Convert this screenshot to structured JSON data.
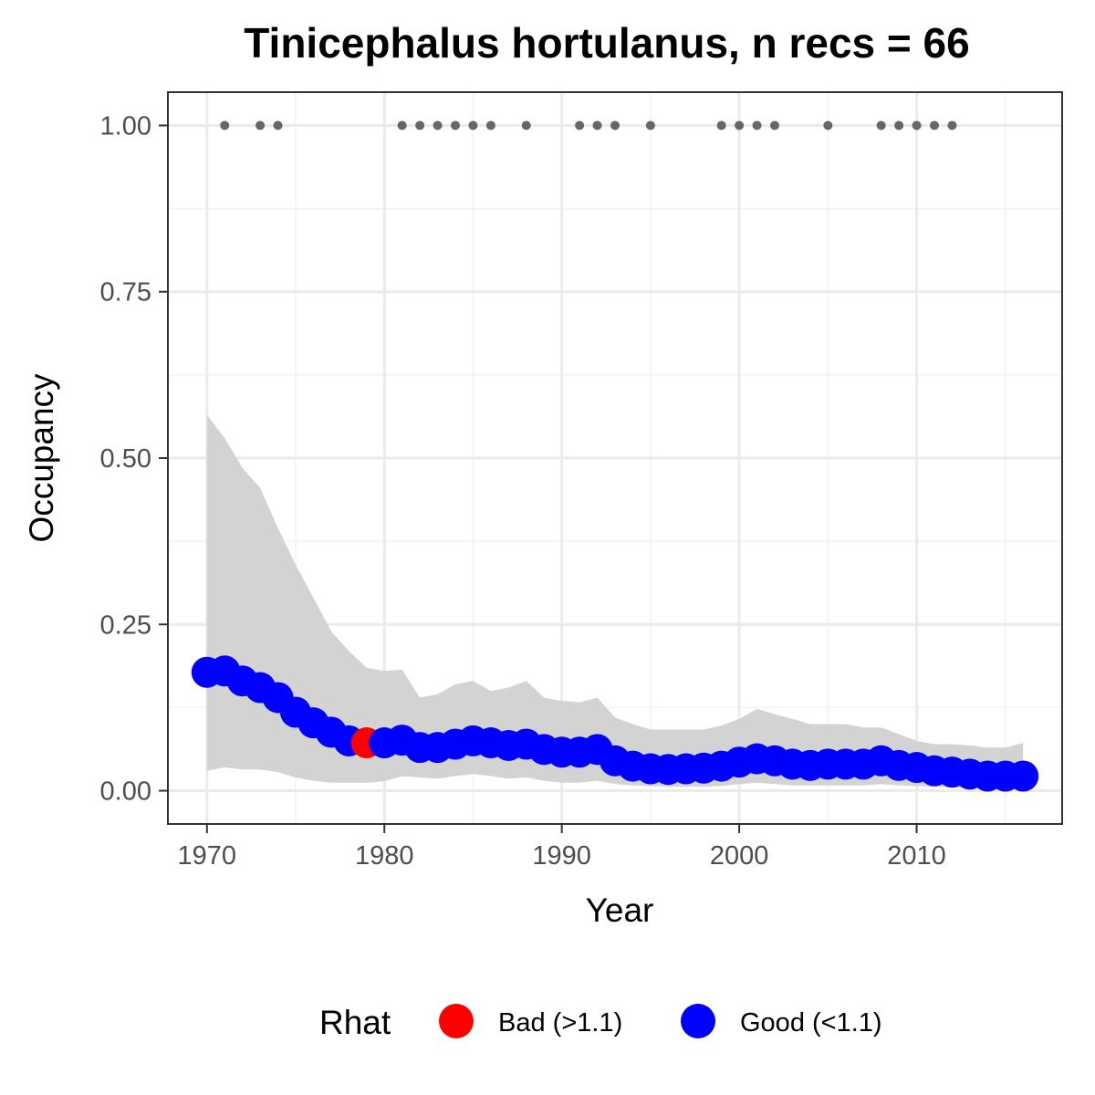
{
  "chart_data": {
    "type": "line",
    "title": "Tinicephalus hortulanus, n recs = 66",
    "xlabel": "Year",
    "ylabel": "Occupancy",
    "xlim": [
      1967.8,
      2018.2
    ],
    "ylim": [
      -0.05,
      1.05
    ],
    "x_ticks": [
      "1970",
      "1980",
      "1990",
      "2000",
      "2010"
    ],
    "y_ticks": [
      "0.00",
      "0.25",
      "0.50",
      "0.75",
      "1.00"
    ],
    "grid": true,
    "legend": {
      "title": "Rhat",
      "placement": "bottom",
      "entries": [
        {
          "label": "Bad (>1.1)",
          "color": "#ff0000"
        },
        {
          "label": "Good (<1.1)",
          "color": "#0000ff"
        }
      ]
    },
    "colors": {
      "bad": "#ff0000",
      "good": "#0000ff",
      "records": "#666666",
      "ribbon": "#d3d3d3"
    },
    "series": [
      {
        "x": [
          1970,
          1971,
          1972,
          1973,
          1974,
          1975,
          1976,
          1977,
          1978,
          1979,
          1980,
          1981,
          1982,
          1983,
          1984,
          1985,
          1986,
          1987,
          1988,
          1989,
          1990,
          1991,
          1992,
          1993,
          1994,
          1995,
          1996,
          1997,
          1998,
          1999,
          2000,
          2001,
          2002,
          2003,
          2004,
          2005,
          2006,
          2007,
          2008,
          2009,
          2010,
          2011,
          2012,
          2013,
          2014,
          2015,
          2016
        ],
        "mean": [
          0.178,
          0.18,
          0.165,
          0.155,
          0.14,
          0.118,
          0.102,
          0.088,
          0.075,
          0.072,
          0.072,
          0.076,
          0.065,
          0.065,
          0.07,
          0.075,
          0.072,
          0.068,
          0.07,
          0.062,
          0.058,
          0.058,
          0.062,
          0.045,
          0.037,
          0.033,
          0.032,
          0.033,
          0.034,
          0.037,
          0.043,
          0.048,
          0.045,
          0.04,
          0.038,
          0.04,
          0.04,
          0.04,
          0.045,
          0.038,
          0.035,
          0.03,
          0.028,
          0.025,
          0.022,
          0.022,
          0.022
        ],
        "lower": [
          0.03,
          0.035,
          0.032,
          0.032,
          0.028,
          0.02,
          0.015,
          0.012,
          0.012,
          0.012,
          0.014,
          0.022,
          0.02,
          0.018,
          0.022,
          0.025,
          0.022,
          0.018,
          0.02,
          0.015,
          0.012,
          0.012,
          0.015,
          0.01,
          0.008,
          0.007,
          0.006,
          0.006,
          0.006,
          0.007,
          0.01,
          0.012,
          0.01,
          0.008,
          0.008,
          0.008,
          0.008,
          0.008,
          0.01,
          0.008,
          0.007,
          0.006,
          0.005,
          0.004,
          0.004,
          0.004,
          0.004
        ],
        "upper": [
          0.565,
          0.53,
          0.485,
          0.455,
          0.395,
          0.34,
          0.29,
          0.24,
          0.21,
          0.185,
          0.18,
          0.182,
          0.14,
          0.145,
          0.16,
          0.165,
          0.15,
          0.155,
          0.165,
          0.14,
          0.135,
          0.133,
          0.14,
          0.11,
          0.1,
          0.092,
          0.092,
          0.092,
          0.092,
          0.098,
          0.108,
          0.123,
          0.115,
          0.108,
          0.1,
          0.1,
          0.1,
          0.095,
          0.095,
          0.085,
          0.075,
          0.07,
          0.07,
          0.068,
          0.065,
          0.065,
          0.072
        ],
        "rhat_bad": [
          1979
        ]
      }
    ],
    "records": {
      "y": 1.0,
      "years": [
        1971,
        1973,
        1974,
        1981,
        1982,
        1983,
        1984,
        1985,
        1986,
        1988,
        1991,
        1992,
        1993,
        1995,
        1999,
        2000,
        2001,
        2002,
        2005,
        2008,
        2009,
        2010,
        2011,
        2012
      ]
    }
  }
}
